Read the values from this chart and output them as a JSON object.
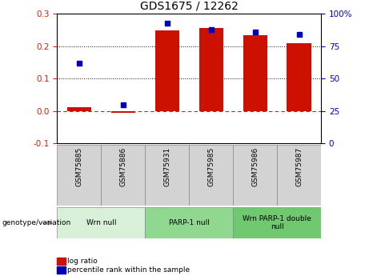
{
  "title": "GDS1675 / 12262",
  "samples": [
    "GSM75885",
    "GSM75886",
    "GSM75931",
    "GSM75985",
    "GSM75986",
    "GSM75987"
  ],
  "log_ratio": [
    0.012,
    -0.005,
    0.25,
    0.255,
    0.235,
    0.21
  ],
  "percentile_rank": [
    62,
    30,
    93,
    88,
    86,
    84
  ],
  "groups": [
    {
      "label": "Wrn null",
      "start": 0,
      "end": 2,
      "color": "#d8f0d8"
    },
    {
      "label": "PARP-1 null",
      "start": 2,
      "end": 4,
      "color": "#90d890"
    },
    {
      "label": "Wrn PARP-1 double\nnull",
      "start": 4,
      "end": 6,
      "color": "#70c870"
    }
  ],
  "bar_color": "#cc1100",
  "dot_color": "#0000bb",
  "zero_line_color": "#cc2200",
  "grid_color": "#111111",
  "ylim_left": [
    -0.1,
    0.3
  ],
  "ylim_right": [
    0,
    100
  ],
  "yticks_left": [
    -0.1,
    0.0,
    0.1,
    0.2,
    0.3
  ],
  "yticks_right": [
    0,
    25,
    50,
    75,
    100
  ],
  "yticklabels_right": [
    "0",
    "25",
    "50",
    "75",
    "100%"
  ],
  "sample_box_color": "#d3d3d3",
  "legend_items": [
    {
      "label": "log ratio",
      "color": "#cc1100"
    },
    {
      "label": "percentile rank within the sample",
      "color": "#0000bb"
    }
  ]
}
